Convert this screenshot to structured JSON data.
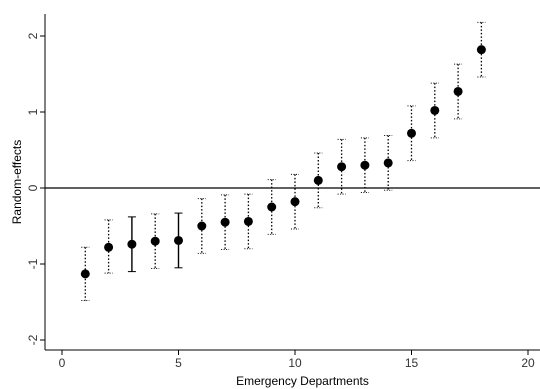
{
  "chart_data": {
    "type": "scatter",
    "title": "",
    "xlabel": "Emergency Departments",
    "ylabel": "Random-effects",
    "xlim": [
      0,
      20
    ],
    "ylim": [
      -2.1,
      2.25
    ],
    "x_ticks": [
      0,
      5,
      10,
      15,
      20
    ],
    "y_ticks": [
      -2,
      -1,
      0,
      1,
      2
    ],
    "reference_line_y": 0,
    "grid": false,
    "legend": "none",
    "marker_color": "#000000",
    "points": [
      {
        "x": 1,
        "y": -1.13,
        "lo": -1.48,
        "hi": -0.78,
        "solid_bar": false
      },
      {
        "x": 2,
        "y": -0.78,
        "lo": -1.12,
        "hi": -0.42,
        "solid_bar": false
      },
      {
        "x": 3,
        "y": -0.74,
        "lo": -1.1,
        "hi": -0.38,
        "solid_bar": true
      },
      {
        "x": 4,
        "y": -0.7,
        "lo": -1.06,
        "hi": -0.34,
        "solid_bar": false
      },
      {
        "x": 5,
        "y": -0.69,
        "lo": -1.05,
        "hi": -0.33,
        "solid_bar": true
      },
      {
        "x": 6,
        "y": -0.5,
        "lo": -0.86,
        "hi": -0.14,
        "solid_bar": false
      },
      {
        "x": 7,
        "y": -0.45,
        "lo": -0.81,
        "hi": -0.09,
        "solid_bar": false
      },
      {
        "x": 8,
        "y": -0.44,
        "lo": -0.8,
        "hi": -0.08,
        "solid_bar": false
      },
      {
        "x": 9,
        "y": -0.25,
        "lo": -0.61,
        "hi": 0.11,
        "solid_bar": false
      },
      {
        "x": 10,
        "y": -0.18,
        "lo": -0.54,
        "hi": 0.18,
        "solid_bar": false
      },
      {
        "x": 11,
        "y": 0.1,
        "lo": -0.26,
        "hi": 0.46,
        "solid_bar": false
      },
      {
        "x": 12,
        "y": 0.28,
        "lo": -0.08,
        "hi": 0.64,
        "solid_bar": false
      },
      {
        "x": 13,
        "y": 0.3,
        "lo": -0.06,
        "hi": 0.66,
        "solid_bar": false
      },
      {
        "x": 14,
        "y": 0.33,
        "lo": -0.03,
        "hi": 0.69,
        "solid_bar": false
      },
      {
        "x": 15,
        "y": 0.72,
        "lo": 0.36,
        "hi": 1.08,
        "solid_bar": false
      },
      {
        "x": 16,
        "y": 1.02,
        "lo": 0.66,
        "hi": 1.38,
        "solid_bar": false
      },
      {
        "x": 17,
        "y": 1.27,
        "lo": 0.91,
        "hi": 1.63,
        "solid_bar": false
      },
      {
        "x": 18,
        "y": 1.82,
        "lo": 1.46,
        "hi": 2.18,
        "solid_bar": false
      }
    ]
  }
}
